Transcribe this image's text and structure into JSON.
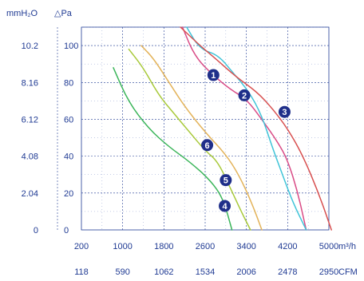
{
  "chart_data": {
    "type": "line",
    "y_units": {
      "primary": "mmH₂O",
      "secondary": "△Pa"
    },
    "x_units": {
      "primary": "m³/h",
      "secondary": "CFM"
    },
    "y_ticks_pa": [
      "0",
      "20",
      "40",
      "60",
      "80",
      "100"
    ],
    "y_ticks_mmh2o": [
      "0",
      "2.04",
      "4.08",
      "6.12",
      "8.16",
      "10.2"
    ],
    "x_ticks_m3h": [
      "200",
      "1000",
      "1800",
      "2600",
      "3400",
      "4200",
      "5000"
    ],
    "x_ticks_cfm": [
      "118",
      "590",
      "1062",
      "1534",
      "2006",
      "2478",
      "2950"
    ],
    "xlim": [
      200,
      5000
    ],
    "ylim": [
      0,
      110
    ],
    "grid": true,
    "series": [
      {
        "name": "1",
        "color": "#d94b86",
        "label_at": [
          2760,
          84
        ],
        "points": [
          [
            2160,
            110
          ],
          [
            2400,
            94
          ],
          [
            2750,
            84
          ],
          [
            3100,
            76
          ],
          [
            3400,
            71
          ],
          [
            3700,
            60
          ],
          [
            4000,
            48
          ],
          [
            4200,
            38
          ],
          [
            4400,
            20
          ],
          [
            4560,
            0
          ]
        ]
      },
      {
        "name": "2",
        "color": "#3fc4d8",
        "label_at": [
          3360,
          73
        ],
        "points": [
          [
            2240,
            110
          ],
          [
            2500,
            98
          ],
          [
            2850,
            95
          ],
          [
            3150,
            85
          ],
          [
            3450,
            75
          ],
          [
            3700,
            62
          ],
          [
            3900,
            45
          ],
          [
            4100,
            30
          ],
          [
            4300,
            15
          ],
          [
            4560,
            0
          ]
        ]
      },
      {
        "name": "3",
        "color": "#d85050",
        "label_at": [
          4140,
          64
        ],
        "points": [
          [
            2120,
            110
          ],
          [
            2500,
            100
          ],
          [
            2800,
            93
          ],
          [
            3200,
            83
          ],
          [
            3600,
            75
          ],
          [
            3900,
            66
          ],
          [
            4200,
            55
          ],
          [
            4500,
            40
          ],
          [
            4800,
            20
          ],
          [
            5050,
            0
          ]
        ]
      },
      {
        "name": "4",
        "color": "#3bb55a",
        "label_at": [
          2980,
          13
        ],
        "points": [
          [
            820,
            88
          ],
          [
            1100,
            70
          ],
          [
            1500,
            55
          ],
          [
            1900,
            45
          ],
          [
            2300,
            37
          ],
          [
            2700,
            27
          ],
          [
            2950,
            17
          ],
          [
            3120,
            0
          ]
        ]
      },
      {
        "name": "5",
        "color": "#a8c93a",
        "label_at": [
          3000,
          27
        ],
        "points": [
          [
            1120,
            98
          ],
          [
            1400,
            88
          ],
          [
            1700,
            73
          ],
          [
            2000,
            63
          ],
          [
            2300,
            53
          ],
          [
            2600,
            43
          ],
          [
            2850,
            37
          ],
          [
            3100,
            22
          ],
          [
            3300,
            10
          ],
          [
            3480,
            0
          ]
        ]
      },
      {
        "name": "6",
        "color": "#e3b35a",
        "label_at": [
          2640,
          46
        ],
        "points": [
          [
            1360,
            100
          ],
          [
            1600,
            93
          ],
          [
            1900,
            80
          ],
          [
            2200,
            67
          ],
          [
            2600,
            53
          ],
          [
            3000,
            41
          ],
          [
            3250,
            30
          ],
          [
            3500,
            15
          ],
          [
            3700,
            0
          ]
        ]
      }
    ]
  }
}
